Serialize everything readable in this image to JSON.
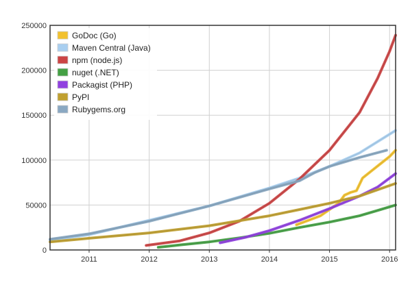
{
  "chart_data": {
    "type": "line",
    "title": "",
    "xlabel": "",
    "ylabel": "",
    "xlim": [
      2010.35,
      2016.1
    ],
    "ylim": [
      0,
      250000
    ],
    "grid": true,
    "legend_position": "top-left",
    "x_ticks": [
      {
        "value": 2011,
        "label": "2011"
      },
      {
        "value": 2012,
        "label": "2012"
      },
      {
        "value": 2013,
        "label": "2013"
      },
      {
        "value": 2014,
        "label": "2014"
      },
      {
        "value": 2015,
        "label": "2015"
      },
      {
        "value": 2016,
        "label": "2016"
      }
    ],
    "y_ticks": [
      {
        "value": 0,
        "label": "0"
      },
      {
        "value": 50000,
        "label": "50000"
      },
      {
        "value": 100000,
        "label": "100000"
      },
      {
        "value": 150000,
        "label": "150000"
      },
      {
        "value": 200000,
        "label": "200000"
      },
      {
        "value": 250000,
        "label": "250000"
      }
    ],
    "series": [
      {
        "name": "GoDoc (Go)",
        "color": "#f2c12e",
        "points": [
          [
            2014.45,
            28000
          ],
          [
            2014.65,
            33000
          ],
          [
            2014.85,
            38000
          ],
          [
            2015.0,
            45000
          ],
          [
            2015.15,
            52000
          ],
          [
            2015.25,
            61000
          ],
          [
            2015.35,
            64000
          ],
          [
            2015.45,
            66000
          ],
          [
            2015.55,
            80000
          ],
          [
            2015.7,
            88000
          ],
          [
            2015.85,
            96000
          ],
          [
            2016.0,
            104000
          ],
          [
            2016.1,
            111000
          ]
        ]
      },
      {
        "name": "Maven Central (Java)",
        "color": "#a9cff0",
        "points": [
          [
            2010.35,
            11000
          ],
          [
            2011.0,
            17000
          ],
          [
            2012.0,
            33000
          ],
          [
            2013.0,
            49000
          ],
          [
            2014.0,
            69000
          ],
          [
            2014.5,
            80000
          ],
          [
            2015.0,
            93000
          ],
          [
            2015.5,
            108000
          ],
          [
            2016.1,
            133000
          ]
        ]
      },
      {
        "name": "npm (node.js)",
        "color": "#cc4444",
        "points": [
          [
            2011.95,
            5000
          ],
          [
            2012.5,
            10000
          ],
          [
            2013.0,
            19000
          ],
          [
            2013.5,
            32000
          ],
          [
            2014.0,
            52000
          ],
          [
            2014.5,
            79000
          ],
          [
            2015.0,
            111000
          ],
          [
            2015.5,
            153000
          ],
          [
            2015.8,
            191000
          ],
          [
            2016.0,
            221000
          ],
          [
            2016.1,
            239000
          ]
        ]
      },
      {
        "name": "nuget (.NET)",
        "color": "#44a044",
        "points": [
          [
            2012.15,
            3000
          ],
          [
            2012.5,
            5500
          ],
          [
            2013.0,
            9000
          ],
          [
            2013.5,
            13500
          ],
          [
            2014.0,
            18500
          ],
          [
            2014.5,
            25000
          ],
          [
            2015.0,
            31000
          ],
          [
            2015.5,
            38000
          ],
          [
            2015.8,
            44000
          ],
          [
            2016.1,
            50000
          ]
        ]
      },
      {
        "name": "Packagist (PHP)",
        "color": "#9040e0",
        "points": [
          [
            2013.18,
            8000
          ],
          [
            2013.6,
            14000
          ],
          [
            2014.0,
            21500
          ],
          [
            2014.5,
            33000
          ],
          [
            2015.0,
            46000
          ],
          [
            2015.5,
            60000
          ],
          [
            2015.8,
            70000
          ],
          [
            2016.1,
            85000
          ]
        ]
      },
      {
        "name": "PyPI",
        "color": "#c0a030",
        "points": [
          [
            2010.35,
            9000
          ],
          [
            2011.0,
            13000
          ],
          [
            2012.0,
            19000
          ],
          [
            2013.0,
            27000
          ],
          [
            2014.0,
            38000
          ],
          [
            2014.5,
            45000
          ],
          [
            2015.0,
            52000
          ],
          [
            2015.5,
            60000
          ],
          [
            2016.1,
            74000
          ]
        ]
      },
      {
        "name": "Rubygems.org",
        "color": "#8aa8c2",
        "points": [
          [
            2010.35,
            12000
          ],
          [
            2011.0,
            18000
          ],
          [
            2012.0,
            32000
          ],
          [
            2013.0,
            49000
          ],
          [
            2014.0,
            68000
          ],
          [
            2014.5,
            77000
          ],
          [
            2014.75,
            86000
          ],
          [
            2015.0,
            93000
          ],
          [
            2015.5,
            103000
          ],
          [
            2015.95,
            111000
          ]
        ]
      }
    ]
  }
}
